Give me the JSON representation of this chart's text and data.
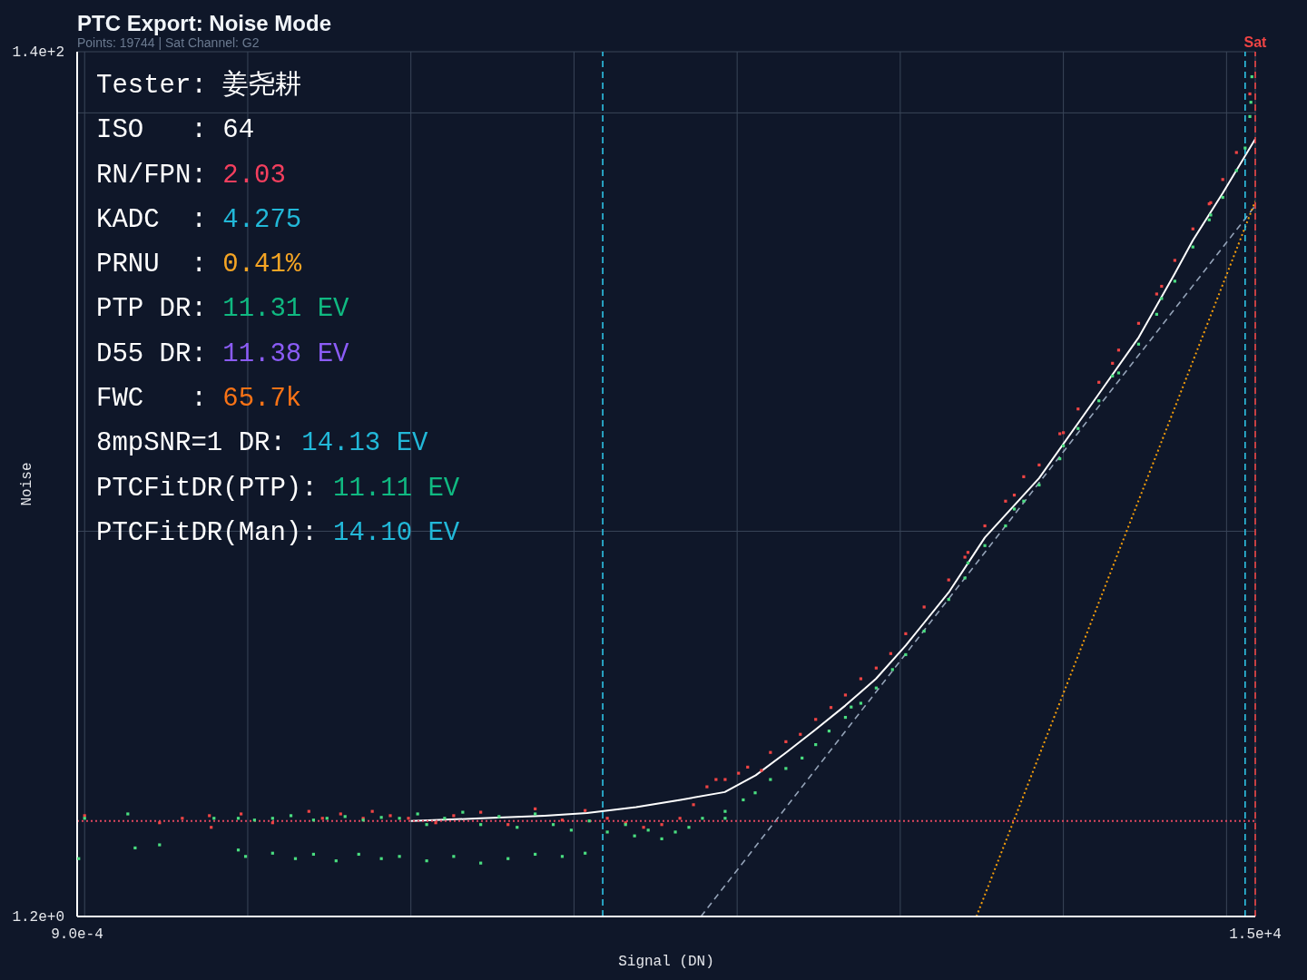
{
  "chart_data": {
    "type": "scatter",
    "title": "PTC Export: Noise Mode",
    "subtitle": "Points: 19744 | Sat Channel: G2",
    "xlabel": "Signal (DN)",
    "ylabel": "Noise",
    "log": "xy",
    "grid": true,
    "xlim": [
      0.0009,
      15000
    ],
    "ylim": [
      1.2,
      140
    ],
    "xticks": [
      {
        "value": 0.0009,
        "label": "9.0e-4"
      },
      {
        "value": 0.001,
        "label": null
      },
      {
        "value": 0.01,
        "label": null
      },
      {
        "value": 0.1,
        "label": null
      },
      {
        "value": 1,
        "label": null
      },
      {
        "value": 10,
        "label": null
      },
      {
        "value": 100,
        "label": null
      },
      {
        "value": 1000,
        "label": null
      },
      {
        "value": 10000,
        "label": null
      },
      {
        "value": 15000,
        "label": "1.5e+4"
      }
    ],
    "yticks": [
      {
        "value": 1.2,
        "label": "1.2e+0"
      },
      {
        "value": 10,
        "label": null
      },
      {
        "value": 100,
        "label": null
      },
      {
        "value": 140,
        "label": "1.4e+2"
      }
    ],
    "series": [
      {
        "color": "#ef4444",
        "marker": "square",
        "x": [
          0.001,
          0.00288,
          0.00397,
          0.00582,
          0.00597,
          0.0091,
          0.0142,
          0.0237,
          0.0287,
          0.0371,
          0.051,
          0.058,
          0.0748,
          0.0966,
          0.142,
          0.183,
          0.268,
          0.394,
          0.578,
          0.847,
          1.17,
          1.6,
          2.07,
          2.67,
          3.45,
          4.46,
          5.4,
          6.53,
          7.42,
          8.44,
          10.2,
          11.6,
          14.1,
          16,
          19.9,
          24.4,
          30.3,
          37.6,
          46.1,
          57.3,
          71.2,
          87.4,
          108,
          140,
          198,
          249,
          330,
          442,
          571,
          710,
          951,
          1230,
          1650,
          2180,
          2890,
          3730,
          4820,
          6220,
          7830,
          9480,
          11500,
          13900,
          260,
          500,
          1000,
          2000,
          4000,
          8000
        ],
        "values": [
          2.09,
          2.01,
          2.06,
          2.09,
          1.96,
          2.11,
          2.01,
          2.14,
          2.06,
          2.11,
          2.06,
          2.14,
          2.09,
          2.06,
          2.01,
          2.09,
          2.13,
          1.99,
          2.17,
          2.04,
          2.15,
          2.06,
          2.01,
          1.96,
          1.99,
          2.06,
          2.22,
          2.45,
          2.55,
          2.55,
          2.64,
          2.73,
          2.68,
          2.96,
          3.14,
          3.27,
          3.55,
          3.79,
          4.06,
          4.44,
          4.71,
          5.1,
          5.69,
          6.59,
          7.65,
          8.67,
          10.3,
          11.8,
          13.5,
          14.4,
          17.1,
          19.6,
          22.7,
          27.1,
          31.4,
          36.9,
          44.4,
          52.8,
          60.6,
          69.3,
          80.4,
          111,
          8.9,
          12.2,
          17.2,
          25.2,
          38.5,
          61
        ]
      },
      {
        "color": "#4ade80",
        "marker": "square",
        "x": [
          0.00092,
          0.001,
          0.00184,
          0.00204,
          0.00288,
          0.00621,
          0.00875,
          0.011,
          0.0142,
          0.0184,
          0.0253,
          0.0306,
          0.0395,
          0.051,
          0.0659,
          0.0851,
          0.00875,
          0.0097,
          0.0142,
          0.0196,
          0.0253,
          0.0348,
          0.0479,
          0.0659,
          0.0851,
          0.125,
          0.183,
          0.268,
          0.394,
          0.578,
          0.847,
          1.17,
          0.11,
          0.125,
          0.161,
          0.208,
          0.268,
          0.347,
          0.448,
          0.578,
          0.746,
          0.962,
          1.24,
          1.6,
          2.07,
          2.35,
          2.85,
          3.45,
          4.18,
          5.06,
          6.13,
          8.44,
          8.44,
          10.9,
          12.9,
          16,
          19.9,
          25,
          30.3,
          36.6,
          46.1,
          57.3,
          71.2,
          89.6,
          108,
          140,
          198,
          249,
          330,
          442,
          571,
          710,
          951,
          1230,
          1650,
          2180,
          2890,
          3730,
          4820,
          6220,
          7830,
          9480,
          11500,
          13000,
          13900,
          14100,
          14300,
          50,
          260,
          500,
          1000,
          2000,
          4000,
          8000
        ],
        "values": [
          1.65,
          2.06,
          2.11,
          1.75,
          1.78,
          2.06,
          2.06,
          2.04,
          2.06,
          2.09,
          2.04,
          2.06,
          2.08,
          2.04,
          2.07,
          2.06,
          1.73,
          1.67,
          1.7,
          1.65,
          1.69,
          1.63,
          1.69,
          1.65,
          1.67,
          1.63,
          1.67,
          1.61,
          1.65,
          1.69,
          1.67,
          1.7,
          2.11,
          1.99,
          2.06,
          2.13,
          1.99,
          2.08,
          1.96,
          2.11,
          1.99,
          1.93,
          2.03,
          1.91,
          1.99,
          1.87,
          1.93,
          1.84,
          1.91,
          1.96,
          2.06,
          2.14,
          2.06,
          2.28,
          2.37,
          2.55,
          2.71,
          2.87,
          3.09,
          3.33,
          3.59,
          3.88,
          4.22,
          4.67,
          5.07,
          5.77,
          6.87,
          7.73,
          9.24,
          10.3,
          11.8,
          12.9,
          14.9,
          17.6,
          20.5,
          23.9,
          28,
          33,
          39.6,
          47.8,
          55.5,
          62.8,
          72.8,
          82.4,
          98,
          106,
          122,
          3.8,
          8.4,
          11.3,
          16,
          23.5,
          36,
          57
        ]
      },
      {
        "type": "line",
        "color": "#ffffff",
        "x": [
          0.1,
          0.27,
          0.66,
          1.2,
          2.4,
          4.5,
          8.4,
          13,
          20,
          30,
          46,
          71,
          108,
          200,
          330,
          710,
          1650,
          2900,
          4800,
          6200,
          9500,
          15000
        ],
        "values": [
          2.03,
          2.06,
          2.09,
          2.12,
          2.19,
          2.28,
          2.38,
          2.61,
          2.96,
          3.35,
          3.83,
          4.44,
          5.33,
          7.18,
          9.66,
          13.4,
          21.3,
          29.1,
          41.2,
          49.5,
          64.4,
          86.6
        ]
      },
      {
        "type": "line",
        "color": "#94a3b8",
        "line_style": "dashed",
        "x": [
          6,
          15000
        ],
        "values": [
          1.2,
          60
        ]
      },
      {
        "type": "line",
        "color": "#f59e0b",
        "line_style": "dotted",
        "x": [
          293,
          15000
        ],
        "values": [
          1.2,
          61.5
        ]
      }
    ],
    "ref_lines": [
      {
        "axis": "x",
        "value": 1.5,
        "color": "#2ec4e6",
        "line_style": "dashed"
      },
      {
        "axis": "x",
        "value": 13000,
        "color": "#2ec4e6",
        "line_style": "dashed"
      },
      {
        "axis": "x",
        "value": 15000,
        "label": "Sat",
        "color": "#ef4444",
        "line_style": "dashed"
      },
      {
        "axis": "y",
        "value": 2.03,
        "color": "#e0475f",
        "line_style": "dotted"
      }
    ],
    "annotations": [
      "Tester: 姜尧耕",
      "ISO   : 64",
      "RN/FPN: 2.03",
      "KADC  : 4.275",
      "PRNU  : 0.41%",
      "PTP DR: 11.31 EV",
      "D55 DR: 11.38 EV",
      "FWC   : 65.7k",
      "8mpSNR=1 DR: 14.13 EV",
      "PTCFitDR(PTP): 11.11 EV",
      "PTCFitDR(Man): 14.10 EV"
    ]
  }
}
